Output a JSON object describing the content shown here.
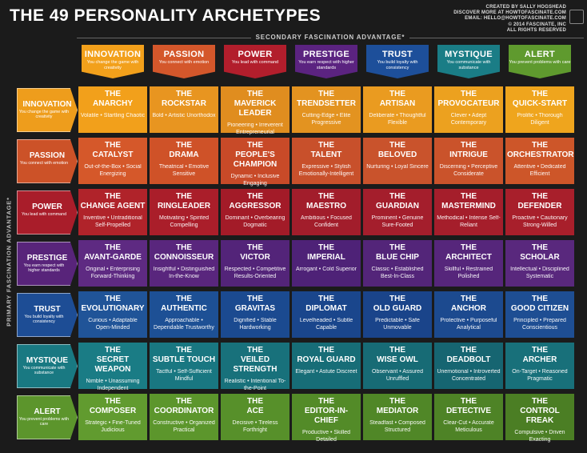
{
  "title": "THE 49 PERSONALITY ARCHETYPES",
  "credits": [
    "CREATED BY SALLY HOGSHEAD",
    "DISCOVER MORE AT HOWTOFASCINATE.COM",
    "EMAIL: HELLO@HOWTOFASCINATE.COM",
    "© 2014 FASCINATE, INC",
    "ALL RIGHTS RESERVED"
  ],
  "secondary_label": "SECONDARY FASCINATION ADVANTAGE*",
  "primary_label": "PRIMARY FASCINATION ADVANTAGE*",
  "advantages": [
    {
      "name": "INNOVATION",
      "col_desc": "You change the game with creativity",
      "row_desc": "You change the game with creativity",
      "color": "#f2a01b",
      "row_color": "#ee9d1c"
    },
    {
      "name": "PASSION",
      "col_desc": "You connect with emotion",
      "row_desc": "You connect with emotion",
      "color": "#d4572b",
      "row_color": "#cc5228"
    },
    {
      "name": "POWER",
      "col_desc": "You lead with command",
      "row_desc": "You lead with command",
      "color": "#b21e2c",
      "row_color": "#a91d2a"
    },
    {
      "name": "PRESTIGE",
      "col_desc": "You earn respect with higher standards",
      "row_desc": "You earn respect with higher standards",
      "color": "#5b2380",
      "row_color": "#58247a"
    },
    {
      "name": "TRUST",
      "col_desc": "You build loyalty with consistency",
      "row_desc": "You build loyalty with consistency",
      "color": "#1d4f9a",
      "row_color": "#1d4d95"
    },
    {
      "name": "MYSTIQUE",
      "col_desc": "You communicate with substance",
      "row_desc": "You communicate with substance",
      "color": "#1a7d86",
      "row_color": "#197982"
    },
    {
      "name": "ALERT",
      "col_desc": "You prevent problems with care",
      "row_desc": "You prevent problems with care",
      "color": "#5f9a2e",
      "row_color": "#5c952c"
    }
  ],
  "grid": [
    [
      {
        "name": "THE ANARCHY",
        "traits": "Volatile • Startling Chaotic",
        "color": "#f2a01b"
      },
      {
        "name": "THE ROCKSTAR",
        "traits": "Bold • Artistic Unorthodox",
        "color": "#e89520"
      },
      {
        "name": "THE MAVERICK LEADER",
        "traits": "Pioneering • Irreverent Entrepreneurial",
        "color": "#e08d1f"
      },
      {
        "name": "THE TRENDSETTER",
        "traits": "Cutting-Edge • Elite Progressive",
        "color": "#e39320"
      },
      {
        "name": "THE ARTISAN",
        "traits": "Deliberate • Thoughtful Flexible",
        "color": "#ea9b20"
      },
      {
        "name": "THE PROVOCATEUR",
        "traits": "Clever • Adept Contemporary",
        "color": "#eca11f"
      },
      {
        "name": "THE QUICK-START",
        "traits": "Prolific • Thorough Diligent",
        "color": "#efa51d"
      }
    ],
    [
      {
        "name": "THE CATALYST",
        "traits": "Out-of-the-Box • Social Energizing",
        "color": "#d5582a"
      },
      {
        "name": "THE DRAMA",
        "traits": "Theatrical • Emotive Sensitive",
        "color": "#cf5228"
      },
      {
        "name": "THE PEOPLE'S CHAMPION",
        "traits": "Dynamic • Inclusive Engaging",
        "color": "#c84a28"
      },
      {
        "name": "THE TALENT",
        "traits": "Expressive • Stylish Emotionally-Intelligent",
        "color": "#c8502b"
      },
      {
        "name": "THE BELOVED",
        "traits": "Nurturing • Loyal Sincere",
        "color": "#c9532c"
      },
      {
        "name": "THE INTRIGUE",
        "traits": "Discerning • Perceptive Considerate",
        "color": "#ca532b"
      },
      {
        "name": "THE ORCHESTRATOR",
        "traits": "Attentive • Dedicated Efficient",
        "color": "#cd5629"
      }
    ],
    [
      {
        "name": "THE CHANGE AGENT",
        "traits": "Inventive • Untraditional Self-Propelled",
        "color": "#b0232a"
      },
      {
        "name": "THE RINGLEADER",
        "traits": "Motivating • Spirited Compelling",
        "color": "#aa1e2a"
      },
      {
        "name": "THE AGGRESSOR",
        "traits": "Dominant • Overbearing Dogmatic",
        "color": "#a31b28"
      },
      {
        "name": "THE MAESTRO",
        "traits": "Ambitious • Focused Confident",
        "color": "#a21d2b"
      },
      {
        "name": "THE GUARDIAN",
        "traits": "Prominent • Genuine Sure-Footed",
        "color": "#a41e2c"
      },
      {
        "name": "THE MASTERMIND",
        "traits": "Methodical • Intense Self-Reliant",
        "color": "#a51e2b"
      },
      {
        "name": "THE DEFENDER",
        "traits": "Proactive • Cautionary Strong-Willed",
        "color": "#a81f2b"
      }
    ],
    [
      {
        "name": "THE AVANT-GARDE",
        "traits": "Original • Enterprising Forward-Thinking",
        "color": "#5e2a82"
      },
      {
        "name": "THE CONNOISSEUR",
        "traits": "Insightful • Distinguished In-the-Know",
        "color": "#59267d"
      },
      {
        "name": "THE VICTOR",
        "traits": "Respected • Competitive Results-Oriented",
        "color": "#532479"
      },
      {
        "name": "THE IMPERIAL",
        "traits": "Arrogant • Cold Superior",
        "color": "#4e2277"
      },
      {
        "name": "THE BLUE CHIP",
        "traits": "Classic • Established Best-In-Class",
        "color": "#532579"
      },
      {
        "name": "THE ARCHITECT",
        "traits": "Skillful • Restrained Polished",
        "color": "#56267b"
      },
      {
        "name": "THE SCHOLAR",
        "traits": "Intellectual • Disciplined Systematic",
        "color": "#59287d"
      }
    ],
    [
      {
        "name": "THE EVOLUTIONARY",
        "traits": "Curious • Adaptable Open-Minded",
        "color": "#205498"
      },
      {
        "name": "THE AUTHENTIC",
        "traits": "Approachable • Dependable Trustworthy",
        "color": "#1d5095"
      },
      {
        "name": "THE GRAVITAS",
        "traits": "Dignified • Stable Hardworking",
        "color": "#1b4a90"
      },
      {
        "name": "THE DIPLOMAT",
        "traits": "Levelheaded • Subtle Capable",
        "color": "#1a468c"
      },
      {
        "name": "THE OLD GUARD",
        "traits": "Predictable • Safe Unmovable",
        "color": "#1a448a"
      },
      {
        "name": "THE ANCHOR",
        "traits": "Protective • Purposeful Analytical",
        "color": "#1c4a8f"
      },
      {
        "name": "THE GOOD CITIZEN",
        "traits": "Principled • Prepared Conscientious",
        "color": "#1e4e93"
      }
    ],
    [
      {
        "name": "THE SECRET WEAPON",
        "traits": "Nimble • Unassuming Independent",
        "color": "#1a7c85"
      },
      {
        "name": "THE SUBTLE TOUCH",
        "traits": "Tactful • Self-Sufficient Mindful",
        "color": "#197781"
      },
      {
        "name": "THE VEILED STRENGTH",
        "traits": "Realistic • Intentional To-the-Point",
        "color": "#18717b"
      },
      {
        "name": "THE ROYAL GUARD",
        "traits": "Elegant • Astute Discreet",
        "color": "#176d77"
      },
      {
        "name": "THE WISE OWL",
        "traits": "Observant • Assured Unruffled",
        "color": "#176b75"
      },
      {
        "name": "THE DEADBOLT",
        "traits": "Unemotional • Introverted Concentrated",
        "color": "#166571"
      },
      {
        "name": "THE ARCHER",
        "traits": "On-Target • Reasoned Pragmatic",
        "color": "#18707a"
      }
    ],
    [
      {
        "name": "THE COMPOSER",
        "traits": "Strategic • Fine-Tuned Judicious",
        "color": "#619b2f"
      },
      {
        "name": "THE COORDINATOR",
        "traits": "Constructive • Organized Practical",
        "color": "#5c962c"
      },
      {
        "name": "THE ACE",
        "traits": "Decisive • Tireless Forthright",
        "color": "#57902a"
      },
      {
        "name": "THE EDITOR-IN-CHIEF",
        "traits": "Productive • Skilled Detailed",
        "color": "#538b28"
      },
      {
        "name": "THE MEDIATOR",
        "traits": "Steadfast • Composed Structured",
        "color": "#508727"
      },
      {
        "name": "THE DETECTIVE",
        "traits": "Clear-Cut • Accurate Meticulous",
        "color": "#4e8326"
      },
      {
        "name": "THE CONTROL FREAK",
        "traits": "Compulsive • Driven Exacting",
        "color": "#4b7e24"
      }
    ]
  ]
}
